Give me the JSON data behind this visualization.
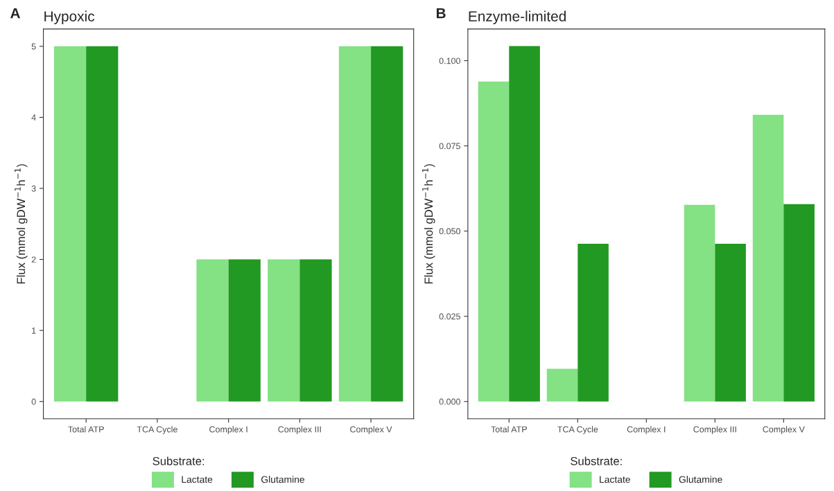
{
  "chart_data": [
    {
      "type": "bar",
      "title": "Hypoxic",
      "annotations": [
        "A"
      ],
      "ylabel": "Flux (mmol gDW$^{−1}$h$^{−1}$)",
      "legend_title": "Substrate:",
      "legend": "bottom",
      "grid": false,
      "categories": [
        "Total ATP",
        "TCA Cycle",
        "Complex I",
        "Complex III",
        "Complex V"
      ],
      "series": [
        {
          "name": "Lactate",
          "color": "#84e184",
          "values": [
            5,
            0,
            2,
            2,
            5
          ]
        },
        {
          "name": "Glutamine",
          "color": "#229922",
          "values": [
            5,
            0,
            2,
            2,
            5
          ]
        }
      ],
      "ylim": [
        -0.244,
        5.244
      ],
      "yticks": [
        0,
        1,
        2,
        3,
        4,
        5
      ]
    },
    {
      "type": "bar",
      "title": "Enzyme-limited",
      "annotations": [
        "B"
      ],
      "ylabel": "Flux (mmol gDW$^{−1}$h$^{−1}$)",
      "legend_title": "Substrate:",
      "legend": "bottom",
      "grid": false,
      "categories": [
        "Total ATP",
        "TCA Cycle",
        "Complex I",
        "Complex III",
        "Complex V"
      ],
      "series": [
        {
          "name": "Lactate",
          "color": "#84e184",
          "values": [
            0.0939,
            0.0096,
            0,
            0.0577,
            0.0841
          ]
        },
        {
          "name": "Glutamine",
          "color": "#229922",
          "values": [
            0.1043,
            0.0463,
            0,
            0.0463,
            0.0579
          ]
        }
      ],
      "ylim": [
        -0.00508,
        0.1093
      ],
      "yticks": [
        {
          "value": 0,
          "label": "0.000"
        },
        {
          "value": 0.025,
          "label": "0.025"
        },
        {
          "value": 0.05,
          "label": "0.050"
        },
        {
          "value": 0.075,
          "label": "0.075"
        },
        {
          "value": 0.1,
          "label": "0.100"
        }
      ]
    }
  ]
}
